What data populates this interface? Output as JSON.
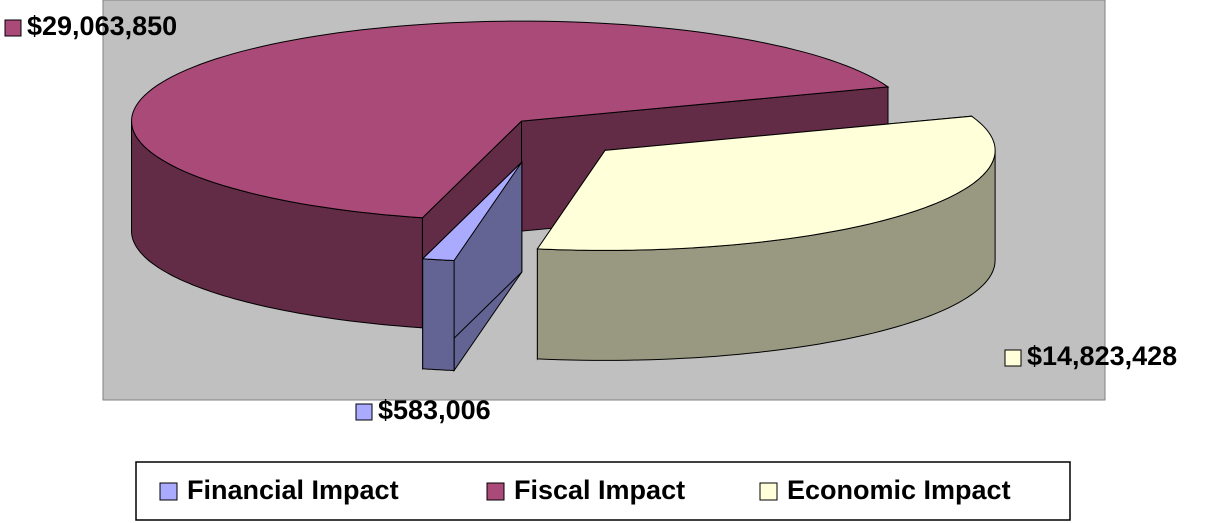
{
  "chart_data": {
    "type": "pie3d",
    "categories": [
      "Financial Impact",
      "Fiscal Impact",
      "Economic Impact"
    ],
    "values": [
      583006,
      29063850,
      14823428
    ],
    "value_labels": [
      "$583,006",
      "$29,063,850",
      "$14,823,428"
    ],
    "colors": [
      "#aaaaff",
      "#a94a78",
      "#ffffd9"
    ],
    "legend": "bottom"
  }
}
